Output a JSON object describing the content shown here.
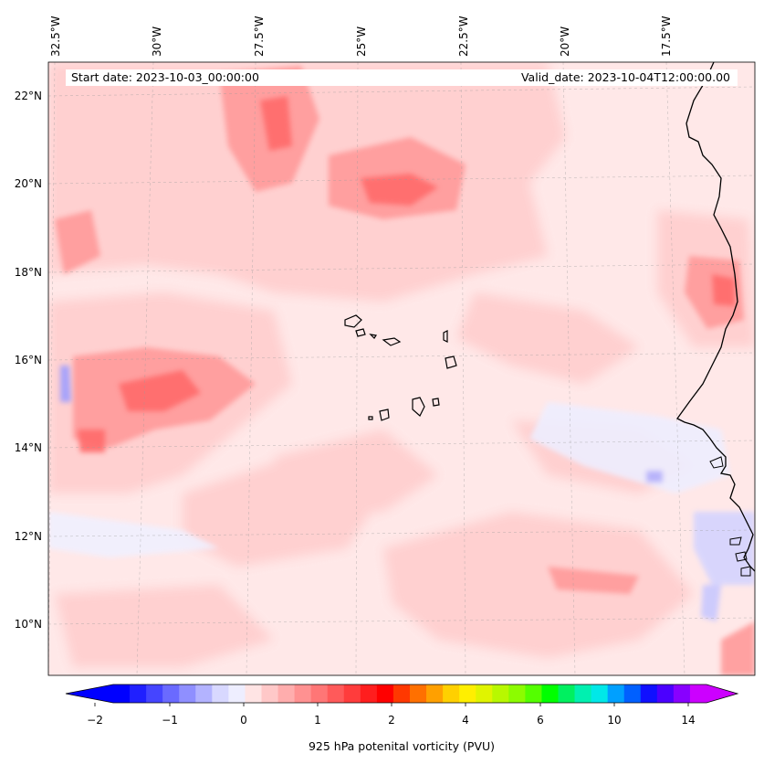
{
  "map": {
    "header": {
      "start_date": "Start date: 2023-10-03_00:00:00",
      "valid_date": "Valid_date: 2023-10-04T12:00:00.00"
    },
    "longitude_labels": [
      "32.5°W",
      "30°W",
      "27.5°W",
      "25°W",
      "22.5°W",
      "20°W",
      "17.5°W"
    ],
    "latitude_labels": [
      "22°N",
      "20°N",
      "18°N",
      "16°N",
      "14°N",
      "12°N",
      "10°N"
    ],
    "variable": "925 hPa potential vorticity",
    "colors": {
      "land_outline": "#000000",
      "background_low": "#ffe8e8",
      "positive_light": "#ffcfcf",
      "positive_mid": "#ff9a9a",
      "positive_strong": "#ff6b6b",
      "negative_light": "#e8e8ff",
      "negative_mid": "#b0b0ff"
    }
  },
  "colorbar": {
    "label": "925 hPa potenital vorticity (PVU)",
    "ticks": [
      "−2",
      "−1",
      "0",
      "1",
      "2",
      "4",
      "6",
      "10",
      "14"
    ],
    "colors": [
      "#0000ff",
      "#2020ff",
      "#4545ff",
      "#6a6aff",
      "#8f8fff",
      "#b3b3ff",
      "#d8d8ff",
      "#eeeeff",
      "#ffe4e4",
      "#ffc8c8",
      "#ffadad",
      "#ff9191",
      "#ff7676",
      "#ff5a5a",
      "#ff3c3c",
      "#ff1e1e",
      "#ff0000",
      "#ff3800",
      "#ff7000",
      "#ffa000",
      "#ffd000",
      "#ffef00",
      "#e0f400",
      "#b8f800",
      "#8cfc00",
      "#54ff00",
      "#00ff00",
      "#00f060",
      "#00f0b0",
      "#00e8e8",
      "#00a0ff",
      "#0060ff",
      "#1010ff",
      "#4b00ff",
      "#8800ff",
      "#cc00ff"
    ],
    "ends": {
      "low": "#0000ff",
      "high": "#cc00ff"
    }
  }
}
